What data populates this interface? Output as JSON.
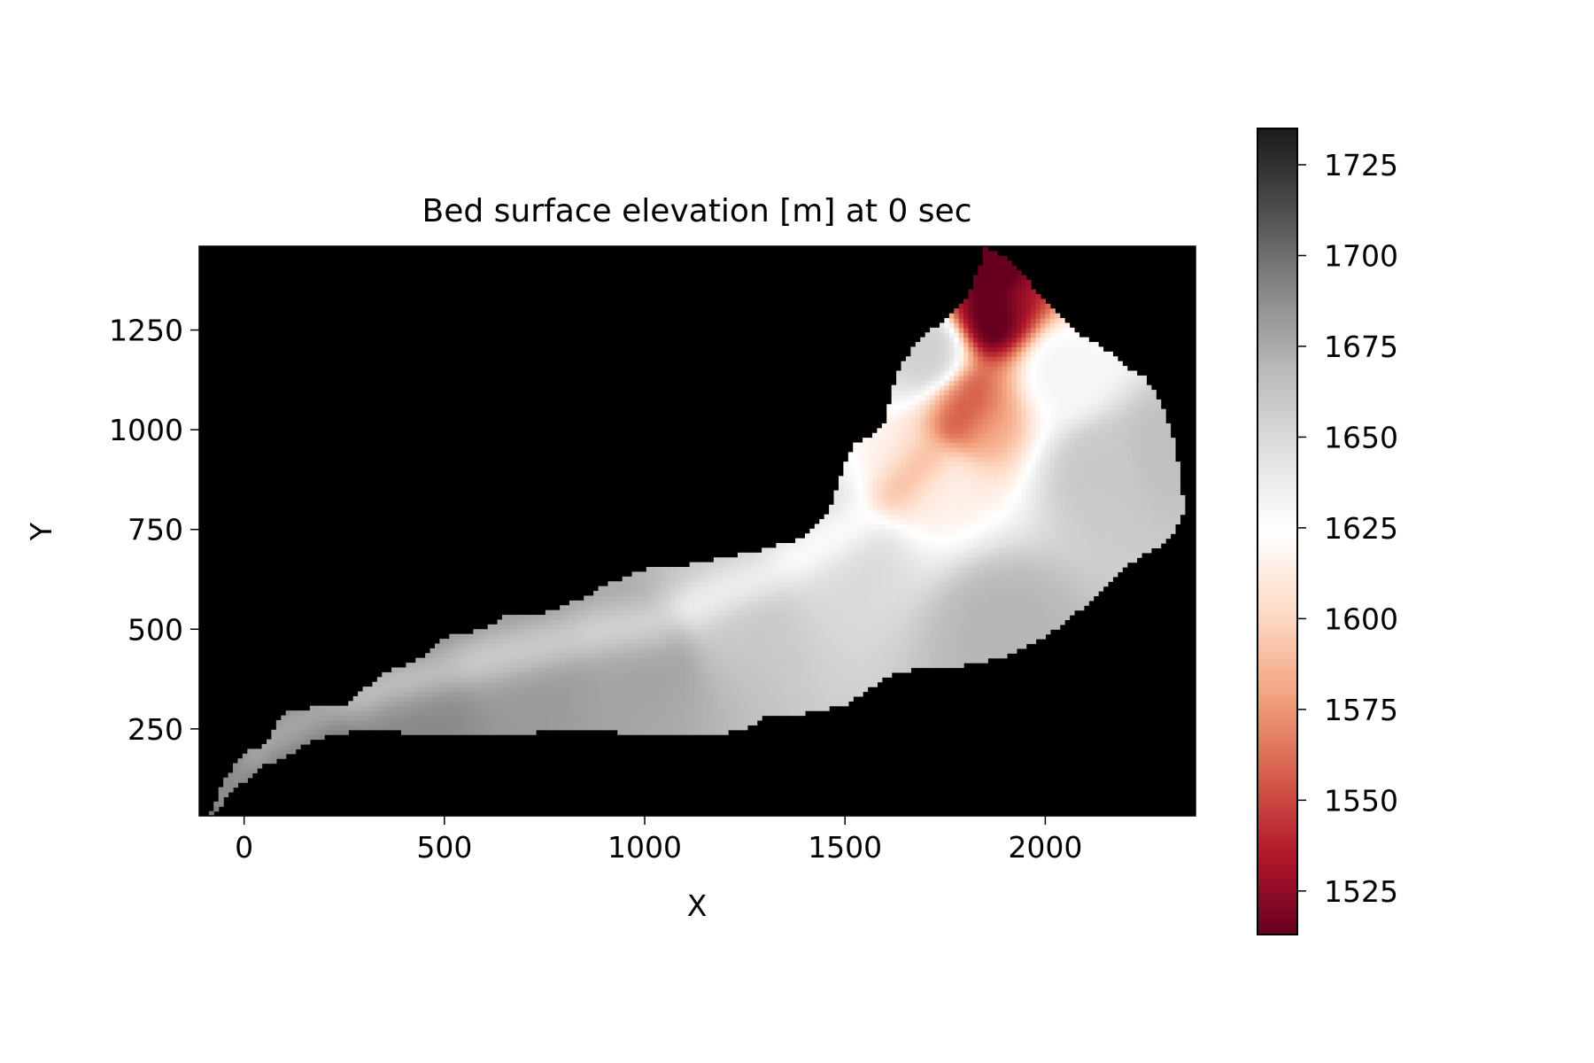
{
  "chart_data": {
    "type": "heatmap",
    "title": "Bed surface elevation [m] at 0 sec",
    "xlabel": "X",
    "ylabel": "Y",
    "xlim": [
      -112,
      2375
    ],
    "ylim": [
      32,
      1460
    ],
    "x_ticks": [
      0,
      500,
      1000,
      1500,
      2000
    ],
    "x_tick_labels": [
      "0",
      "500",
      "1000",
      "1500",
      "2000"
    ],
    "y_ticks": [
      250,
      500,
      750,
      1000,
      1250
    ],
    "y_tick_labels": [
      "250",
      "500",
      "750",
      "1000",
      "1250"
    ],
    "background_color": "#000000",
    "colormap": "RdGy",
    "colorbar": {
      "range": [
        1513,
        1735
      ],
      "ticks": [
        1525,
        1550,
        1575,
        1600,
        1625,
        1650,
        1675,
        1700,
        1725
      ],
      "tick_labels": [
        "1525",
        "1550",
        "1575",
        "1600",
        "1625",
        "1650",
        "1675",
        "1700",
        "1725"
      ],
      "colors": [
        "#67001f",
        "#b2182b",
        "#d6604d",
        "#f4a582",
        "#fddbc7",
        "#ffffff",
        "#e0e0e0",
        "#bababa",
        "#878787",
        "#4d4d4d",
        "#1a1a1a"
      ]
    },
    "domain_boundary": {
      "upper": [
        [
          -85,
          32
        ],
        [
          -50,
          120
        ],
        [
          0,
          190
        ],
        [
          50,
          210
        ],
        [
          100,
          290
        ],
        [
          150,
          300
        ],
        [
          250,
          310
        ],
        [
          350,
          390
        ],
        [
          450,
          430
        ],
        [
          500,
          480
        ],
        [
          600,
          500
        ],
        [
          650,
          530
        ],
        [
          750,
          540
        ],
        [
          850,
          580
        ],
        [
          900,
          610
        ],
        [
          1000,
          650
        ],
        [
          1100,
          660
        ],
        [
          1200,
          680
        ],
        [
          1300,
          700
        ],
        [
          1400,
          730
        ],
        [
          1440,
          770
        ],
        [
          1470,
          820
        ],
        [
          1490,
          880
        ],
        [
          1500,
          920
        ],
        [
          1520,
          960
        ],
        [
          1560,
          980
        ],
        [
          1600,
          1020
        ],
        [
          1620,
          1100
        ],
        [
          1640,
          1160
        ],
        [
          1680,
          1220
        ],
        [
          1730,
          1260
        ],
        [
          1800,
          1320
        ],
        [
          1820,
          1370
        ],
        [
          1840,
          1420
        ],
        [
          1850,
          1460
        ]
      ],
      "right": [
        [
          1850,
          1460
        ],
        [
          1880,
          1440
        ],
        [
          1920,
          1420
        ],
        [
          1950,
          1380
        ],
        [
          2000,
          1320
        ],
        [
          2050,
          1270
        ],
        [
          2100,
          1230
        ],
        [
          2150,
          1200
        ],
        [
          2200,
          1160
        ],
        [
          2250,
          1130
        ],
        [
          2290,
          1060
        ],
        [
          2320,
          980
        ],
        [
          2340,
          860
        ],
        [
          2345,
          800
        ],
        [
          2330,
          760
        ],
        [
          2300,
          720
        ],
        [
          2250,
          690
        ],
        [
          2200,
          660
        ],
        [
          2160,
          620
        ],
        [
          2100,
          560
        ],
        [
          2000,
          480
        ],
        [
          1900,
          430
        ],
        [
          1800,
          410
        ]
      ],
      "lower": [
        [
          1800,
          410
        ],
        [
          1700,
          410
        ],
        [
          1600,
          380
        ],
        [
          1560,
          350
        ],
        [
          1500,
          310
        ],
        [
          1450,
          300
        ],
        [
          1400,
          290
        ],
        [
          1300,
          280
        ],
        [
          1250,
          250
        ],
        [
          1200,
          240
        ],
        [
          1100,
          240
        ],
        [
          1050,
          230
        ],
        [
          950,
          240
        ],
        [
          850,
          250
        ],
        [
          700,
          240
        ],
        [
          600,
          240
        ],
        [
          500,
          240
        ],
        [
          400,
          240
        ],
        [
          350,
          250
        ],
        [
          300,
          250
        ],
        [
          200,
          230
        ],
        [
          150,
          210
        ],
        [
          100,
          180
        ],
        [
          50,
          160
        ],
        [
          0,
          120
        ],
        [
          -50,
          70
        ],
        [
          -75,
          32
        ]
      ]
    },
    "channel": [
      [
        1870,
        1440
      ],
      [
        1860,
        1340
      ],
      [
        1870,
        1250
      ],
      [
        1840,
        1150
      ],
      [
        1820,
        1080
      ],
      [
        1760,
        1000
      ],
      [
        1700,
        930
      ],
      [
        1640,
        860
      ],
      [
        1560,
        790
      ],
      [
        1480,
        740
      ],
      [
        1400,
        690
      ],
      [
        1300,
        640
      ],
      [
        1200,
        600
      ],
      [
        1120,
        560
      ],
      [
        1020,
        520
      ],
      [
        900,
        500
      ],
      [
        780,
        470
      ],
      [
        650,
        440
      ],
      [
        500,
        400
      ],
      [
        350,
        360
      ],
      [
        200,
        300
      ],
      [
        50,
        220
      ],
      [
        -60,
        80
      ]
    ],
    "surface_samples": [
      {
        "x": -75,
        "y": 60,
        "elevation": 1710
      },
      {
        "x": 100,
        "y": 250,
        "elevation": 1700
      },
      {
        "x": 400,
        "y": 330,
        "elevation": 1690
      },
      {
        "x": 700,
        "y": 420,
        "elevation": 1682
      },
      {
        "x": 1000,
        "y": 450,
        "elevation": 1678
      },
      {
        "x": 1200,
        "y": 560,
        "elevation": 1660
      },
      {
        "x": 1500,
        "y": 700,
        "elevation": 1650
      },
      {
        "x": 1700,
        "y": 880,
        "elevation": 1615
      },
      {
        "x": 1820,
        "y": 1050,
        "elevation": 1580
      },
      {
        "x": 1870,
        "y": 1300,
        "elevation": 1530
      },
      {
        "x": 1860,
        "y": 1440,
        "elevation": 1515
      },
      {
        "x": 2150,
        "y": 900,
        "elevation": 1660
      },
      {
        "x": 2300,
        "y": 950,
        "elevation": 1665
      },
      {
        "x": 1900,
        "y": 500,
        "elevation": 1670
      },
      {
        "x": 1700,
        "y": 1200,
        "elevation": 1655
      },
      {
        "x": 2050,
        "y": 1150,
        "elevation": 1630
      }
    ]
  }
}
